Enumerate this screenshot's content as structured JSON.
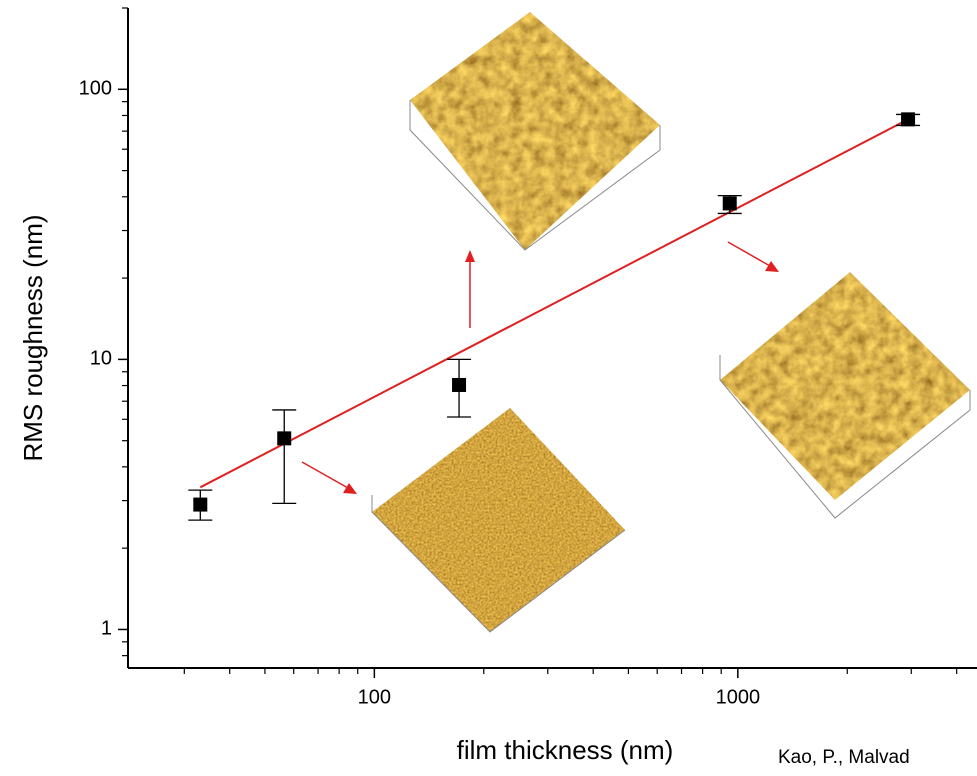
{
  "chart_data": {
    "type": "scatter",
    "xlabel": "film thickness (nm)",
    "ylabel": "RMS roughness (nm)",
    "citation": "Kao, P., Malvad",
    "xscale": "log",
    "yscale": "log",
    "xlim": [
      21,
      4550
    ],
    "ylim": [
      0.72,
      200
    ],
    "xticks": [
      100,
      1000
    ],
    "yticks": [
      1,
      10,
      100
    ],
    "xminor_ticks": [
      30,
      40,
      50,
      60,
      70,
      80,
      90,
      200,
      300,
      400,
      500,
      600,
      700,
      800,
      900,
      2000,
      3000,
      4000
    ],
    "yminor_ticks": [
      0.8,
      0.9,
      2,
      3,
      4,
      5,
      6,
      7,
      8,
      9,
      20,
      30,
      40,
      50,
      60,
      70,
      80,
      90,
      200
    ],
    "series": [
      {
        "color": "#000000",
        "x": [
          33.2,
          56.5,
          171,
          950,
          2940
        ],
        "values": [
          2.9,
          5.1,
          8.04,
          37.8,
          77.4
        ],
        "yerr_minus": [
          0.36,
          2.17,
          1.92,
          3.1,
          3.9
        ],
        "yerr_plus": [
          0.38,
          1.4,
          1.96,
          2.6,
          3.3
        ]
      }
    ],
    "fit": {
      "color": "#e02020",
      "x": [
        33.2,
        3010
      ],
      "y": [
        3.36,
        78.7
      ]
    }
  }
}
